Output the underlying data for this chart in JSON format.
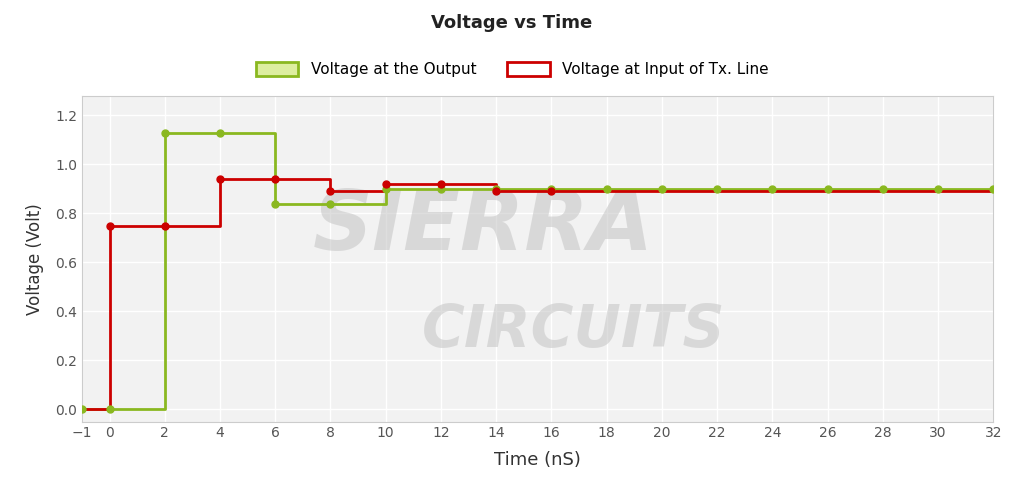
{
  "title": "Voltage vs Time",
  "xlabel": "Time (nS)",
  "ylabel": "Voltage (Volt)",
  "xlim": [
    -1,
    32
  ],
  "ylim": [
    -0.05,
    1.28
  ],
  "xticks": [
    -1,
    0,
    2,
    4,
    6,
    8,
    10,
    12,
    14,
    16,
    18,
    20,
    22,
    24,
    26,
    28,
    30,
    32
  ],
  "yticks": [
    0,
    0.2,
    0.4,
    0.6,
    0.8,
    1.0,
    1.2
  ],
  "green_color": "#8ab820",
  "red_color": "#cc0000",
  "bg_color": "#f2f2f2",
  "legend1": "Voltage at the Output",
  "legend2": "Voltage at Input of Tx. Line",
  "green_x": [
    -1,
    0,
    0,
    2,
    2,
    4,
    4,
    6,
    6,
    8,
    8,
    10,
    10,
    12,
    12,
    14,
    14,
    16,
    16,
    18,
    18,
    20,
    20,
    22,
    22,
    24,
    24,
    26,
    26,
    28,
    28,
    30,
    30,
    32
  ],
  "green_y": [
    0,
    0,
    0,
    0,
    1.13,
    1.13,
    1.13,
    1.13,
    0.84,
    0.84,
    0.84,
    0.84,
    0.9,
    0.9,
    0.9,
    0.9,
    0.9,
    0.9,
    0.9,
    0.9,
    0.9,
    0.9,
    0.9,
    0.9,
    0.9,
    0.9,
    0.9,
    0.9,
    0.9,
    0.9,
    0.9,
    0.9,
    0.9,
    0.9
  ],
  "green_dots_x": [
    -1,
    0,
    2,
    4,
    6,
    8,
    10,
    12,
    14,
    16,
    18,
    20,
    22,
    24,
    26,
    28,
    30,
    32
  ],
  "green_dots_y": [
    0,
    0,
    1.13,
    1.13,
    0.84,
    0.84,
    0.9,
    0.9,
    0.9,
    0.9,
    0.9,
    0.9,
    0.9,
    0.9,
    0.9,
    0.9,
    0.9,
    0.9
  ],
  "red_x": [
    -1,
    0,
    0,
    2,
    2,
    4,
    4,
    6,
    6,
    8,
    8,
    10,
    10,
    12,
    12,
    14,
    14,
    16,
    16,
    18,
    18,
    20,
    20,
    22,
    22,
    24,
    24,
    26,
    26,
    28,
    28,
    30,
    30,
    32
  ],
  "red_y": [
    0,
    0,
    0.75,
    0.75,
    0.75,
    0.75,
    0.94,
    0.94,
    0.94,
    0.94,
    0.89,
    0.89,
    0.92,
    0.92,
    0.92,
    0.92,
    0.89,
    0.89,
    0.89,
    0.89,
    0.89,
    0.89,
    0.89,
    0.89,
    0.89,
    0.89,
    0.89,
    0.89,
    0.89,
    0.89,
    0.89,
    0.89,
    0.89,
    0.89
  ],
  "red_dots_x": [
    0,
    2,
    4,
    6,
    8,
    10,
    12,
    14,
    16
  ],
  "red_dots_y": [
    0.75,
    0.75,
    0.94,
    0.94,
    0.89,
    0.92,
    0.92,
    0.89,
    0.89
  ],
  "watermark1": "SIERRA",
  "watermark2": "CIRCUITS",
  "fig_width": 10.24,
  "fig_height": 4.79,
  "dpi": 100
}
